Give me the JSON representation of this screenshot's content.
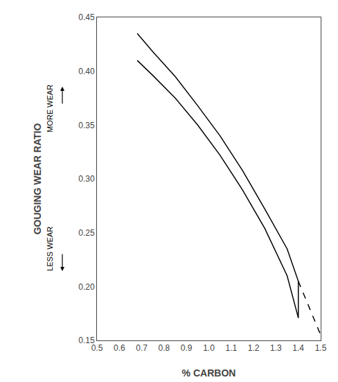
{
  "chart_data": {
    "type": "line",
    "xlabel": "% CARBON",
    "ylabel": "GOUGING WEAR RATIO",
    "xlim": [
      0.5,
      1.5
    ],
    "ylim": [
      0.15,
      0.45
    ],
    "xticks": [
      0.5,
      0.6,
      0.7,
      0.8,
      0.9,
      {
        "value": 1.0,
        "label": "1.0"
      },
      1.1,
      1.2,
      1.3,
      1.4,
      1.5
    ],
    "yticks": [
      0.15,
      {
        "value": 0.2,
        "label": "0.20"
      },
      0.25,
      {
        "value": 0.3,
        "label": "0.30"
      },
      0.35,
      {
        "value": 0.4,
        "label": "0.40"
      },
      0.45
    ],
    "grid": false,
    "series": [
      {
        "color": "#000000",
        "line_style": "solid",
        "x": [
          0.68,
          0.75,
          0.85,
          0.95,
          1.05,
          1.15,
          1.25,
          1.35,
          1.4,
          1.4
        ],
        "values": [
          0.435,
          0.418,
          0.395,
          0.368,
          0.34,
          0.308,
          0.272,
          0.235,
          0.205,
          0.171
        ]
      },
      {
        "color": "#000000",
        "line_style": "solid",
        "x": [
          0.68,
          0.75,
          0.85,
          0.95,
          1.05,
          1.15,
          1.25,
          1.35,
          1.4
        ],
        "values": [
          0.41,
          0.396,
          0.375,
          0.35,
          0.322,
          0.29,
          0.254,
          0.21,
          0.171
        ]
      },
      {
        "color": "#000000",
        "line_style": "dashed",
        "x": [
          1.4,
          1.5
        ],
        "values": [
          0.205,
          0.155
        ]
      }
    ],
    "annotations": [
      {
        "text": "MORE WEAR",
        "y": 0.365,
        "arrow": "up"
      },
      {
        "text": "LESS WEAR",
        "y": 0.235,
        "arrow": "down"
      }
    ]
  }
}
